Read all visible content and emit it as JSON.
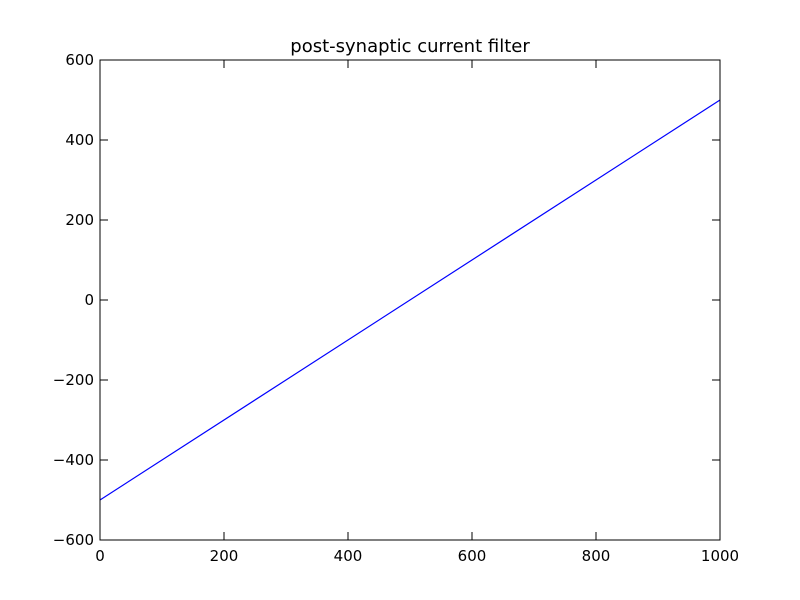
{
  "chart_data": {
    "type": "line",
    "title": "post-synaptic current filter",
    "xlabel": "",
    "ylabel": "",
    "xlim": [
      0,
      1000
    ],
    "ylim": [
      -600,
      600
    ],
    "x_ticks": [
      0,
      200,
      400,
      600,
      800,
      1000
    ],
    "y_ticks": [
      -600,
      -400,
      -200,
      0,
      200,
      400,
      600
    ],
    "x_tick_labels": [
      "0",
      "200",
      "400",
      "600",
      "800",
      "1000"
    ],
    "y_tick_labels": [
      "−600",
      "−400",
      "−200",
      "0",
      "200",
      "400",
      "600"
    ],
    "grid": false,
    "legend": "none",
    "series": [
      {
        "color": "#0000ff",
        "x": [
          0,
          1000
        ],
        "y": [
          -500,
          500
        ]
      }
    ]
  }
}
